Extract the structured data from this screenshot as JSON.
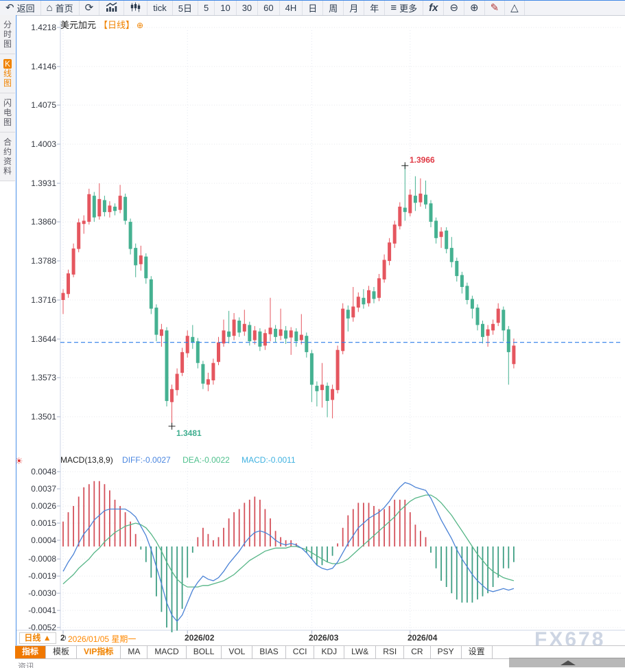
{
  "toolbar": {
    "items": [
      {
        "label": "返回",
        "icon": "back-arrow-icon"
      },
      {
        "label": "首页",
        "icon": "home-icon"
      },
      {
        "label": "",
        "icon": "refresh-icon"
      },
      {
        "label": "",
        "icon": "bar-chart-icon"
      },
      {
        "label": "",
        "icon": "candlestick-icon"
      },
      {
        "label": "tick"
      },
      {
        "label": "5日"
      },
      {
        "label": "5"
      },
      {
        "label": "10"
      },
      {
        "label": "30"
      },
      {
        "label": "60"
      },
      {
        "label": "4H"
      },
      {
        "label": "日"
      },
      {
        "label": "周"
      },
      {
        "label": "月"
      },
      {
        "label": "年"
      },
      {
        "label": "更多",
        "icon": "menu-icon"
      },
      {
        "label": "",
        "icon": "fx-icon"
      },
      {
        "label": "",
        "icon": "zoom-out-icon"
      },
      {
        "label": "",
        "icon": "zoom-in-icon"
      },
      {
        "label": "",
        "icon": "pencil-icon"
      },
      {
        "label": "",
        "icon": "triangle-icon"
      }
    ]
  },
  "sidebar": {
    "items": [
      {
        "label": "分时图",
        "active": false
      },
      {
        "label": "K线图",
        "active": true
      },
      {
        "label": "闪电图",
        "active": false
      },
      {
        "label": "合约资料",
        "active": false
      }
    ]
  },
  "chart": {
    "title": "美元加元",
    "period_tag": "【日线】",
    "settings_icon": "⊕",
    "high_label": "1.3966",
    "low_label": "1.3481",
    "colors": {
      "up": "#e5565f",
      "down": "#45b191",
      "hist_pos": "#d4505a",
      "hist_neg": "#3f9f84",
      "diff_line": "#4a82d6",
      "dea_line": "#55b586",
      "dashed_line": "#2b7de9",
      "accent_orange": "#f08300"
    }
  },
  "macd_header": {
    "name": "MACD(13,8,9)",
    "diff": "DIFF:-0.0027",
    "dea": "DEA:-0.0022",
    "macd": "MACD:-0.0011"
  },
  "bottom": {
    "period_button": "日线 ▲",
    "date_label": "2026/01/05 星期一",
    "tabs": [
      {
        "label": "指标",
        "state": "active"
      },
      {
        "label": "模板",
        "state": ""
      },
      {
        "label": "VIP指标",
        "state": "vip"
      },
      {
        "label": "MA",
        "state": ""
      },
      {
        "label": "MACD",
        "state": ""
      },
      {
        "label": "BOLL",
        "state": ""
      },
      {
        "label": "VOL",
        "state": ""
      },
      {
        "label": "BIAS",
        "state": ""
      },
      {
        "label": "CCI",
        "state": ""
      },
      {
        "label": "KDJ",
        "state": ""
      },
      {
        "label": "LW&",
        "state": ""
      },
      {
        "label": "RSI",
        "state": ""
      },
      {
        "label": "CR",
        "state": ""
      },
      {
        "label": "PSY",
        "state": ""
      },
      {
        "label": "设置",
        "state": ""
      }
    ],
    "partial_text": "资讯"
  },
  "watermark": "FX678",
  "chart_data": {
    "type": "candlestick",
    "title": "美元加元 日线",
    "x_labels": [
      "2026/01",
      "2026/02",
      "2026/03",
      "2026/04"
    ],
    "month_start_indices": [
      0,
      24,
      48,
      67
    ],
    "y_axis": {
      "ticks": [
        "1.4218",
        "1.4146",
        "1.4075",
        "1.4003",
        "1.3931",
        "1.3860",
        "1.3788",
        "1.3716",
        "1.3644",
        "1.3573",
        "1.3501"
      ],
      "high_annotation": 1.3966,
      "low_annotation": 1.3481,
      "last_price_line": 1.3638
    },
    "candles": [
      [
        1.3716,
        1.3729,
        1.369,
        1.3736
      ],
      [
        1.3727,
        1.3765,
        1.372,
        1.3772
      ],
      [
        1.3763,
        1.3811,
        1.3758,
        1.382
      ],
      [
        1.381,
        1.3859,
        1.3804,
        1.3866
      ],
      [
        1.3856,
        1.3862,
        1.3838,
        1.3872
      ],
      [
        1.386,
        1.3911,
        1.3855,
        1.3921
      ],
      [
        1.3908,
        1.3868,
        1.386,
        1.3915
      ],
      [
        1.387,
        1.3902,
        1.3864,
        1.3931
      ],
      [
        1.39,
        1.3878,
        1.387,
        1.3908
      ],
      [
        1.3878,
        1.389,
        1.3868,
        1.3898
      ],
      [
        1.3888,
        1.388,
        1.3872,
        1.3894
      ],
      [
        1.3882,
        1.3908,
        1.3876,
        1.3928
      ],
      [
        1.3906,
        1.3862,
        1.3855,
        1.3912
      ],
      [
        1.386,
        1.381,
        1.38,
        1.3866
      ],
      [
        1.3812,
        1.378,
        1.3758,
        1.382
      ],
      [
        1.3782,
        1.3798,
        1.377,
        1.3816
      ],
      [
        1.3796,
        1.3756,
        1.3746,
        1.3802
      ],
      [
        1.3754,
        1.37,
        1.369,
        1.376
      ],
      [
        1.3702,
        1.3652,
        1.364,
        1.3708
      ],
      [
        1.365,
        1.3662,
        1.363,
        1.3672
      ],
      [
        1.366,
        1.353,
        1.352,
        1.3666
      ],
      [
        1.3528,
        1.3552,
        1.3481,
        1.356
      ],
      [
        1.355,
        1.358,
        1.354,
        1.359
      ],
      [
        1.3582,
        1.362,
        1.3576,
        1.3628
      ],
      [
        1.3618,
        1.365,
        1.361,
        1.366
      ],
      [
        1.3648,
        1.3638,
        1.3626,
        1.367
      ],
      [
        1.364,
        1.36,
        1.359,
        1.3646
      ],
      [
        1.3598,
        1.3562,
        1.3552,
        1.3604
      ],
      [
        1.356,
        1.357,
        1.3548,
        1.3582
      ],
      [
        1.3568,
        1.36,
        1.356,
        1.3608
      ],
      [
        1.3602,
        1.3638,
        1.3596,
        1.3648
      ],
      [
        1.3636,
        1.366,
        1.363,
        1.368
      ],
      [
        1.3658,
        1.3648,
        1.3636,
        1.3696
      ],
      [
        1.365,
        1.368,
        1.3642,
        1.3692
      ],
      [
        1.3678,
        1.3656,
        1.3648,
        1.3684
      ],
      [
        1.3658,
        1.3672,
        1.365,
        1.3698
      ],
      [
        1.367,
        1.364,
        1.3632,
        1.3676
      ],
      [
        1.3642,
        1.366,
        1.3634,
        1.3668
      ],
      [
        1.3658,
        1.363,
        1.3622,
        1.3664
      ],
      [
        1.3632,
        1.3655,
        1.3624,
        1.3662
      ],
      [
        1.3653,
        1.3665,
        1.364,
        1.372
      ],
      [
        1.3663,
        1.3648,
        1.3638,
        1.367
      ],
      [
        1.365,
        1.3662,
        1.3642,
        1.37
      ],
      [
        1.366,
        1.3645,
        1.3635,
        1.3668
      ],
      [
        1.3647,
        1.366,
        1.3615,
        1.3666
      ],
      [
        1.3658,
        1.364,
        1.363,
        1.3664
      ],
      [
        1.3642,
        1.3652,
        1.3634,
        1.369
      ],
      [
        1.365,
        1.362,
        1.361,
        1.3656
      ],
      [
        1.3618,
        1.356,
        1.3528,
        1.3624
      ],
      [
        1.3558,
        1.3548,
        1.352,
        1.3566
      ],
      [
        1.355,
        1.356,
        1.3518,
        1.36
      ],
      [
        1.3558,
        1.353,
        1.35,
        1.3564
      ],
      [
        1.3532,
        1.3552,
        1.3498,
        1.356
      ],
      [
        1.355,
        1.3624,
        1.3544,
        1.3632
      ],
      [
        1.3622,
        1.37,
        1.3616,
        1.371
      ],
      [
        1.3698,
        1.3682,
        1.3658,
        1.3706
      ],
      [
        1.3684,
        1.3704,
        1.3676,
        1.374
      ],
      [
        1.3702,
        1.3722,
        1.3694,
        1.373
      ],
      [
        1.372,
        1.3708,
        1.37,
        1.3736
      ],
      [
        1.371,
        1.3734,
        1.3704,
        1.3742
      ],
      [
        1.3732,
        1.3718,
        1.371,
        1.374
      ],
      [
        1.372,
        1.3756,
        1.3714,
        1.3764
      ],
      [
        1.3754,
        1.379,
        1.3748,
        1.38
      ],
      [
        1.3788,
        1.3822,
        1.378,
        1.383
      ],
      [
        1.382,
        1.3855,
        1.3812,
        1.3862
      ],
      [
        1.3852,
        1.3888,
        1.3846,
        1.3896
      ],
      [
        1.3886,
        1.3878,
        1.3862,
        1.3966
      ],
      [
        1.3876,
        1.391,
        1.387,
        1.392
      ],
      [
        1.3908,
        1.3895,
        1.388,
        1.3944
      ],
      [
        1.3896,
        1.3912,
        1.3888,
        1.394
      ],
      [
        1.391,
        1.3892,
        1.3884,
        1.3936
      ],
      [
        1.3894,
        1.386,
        1.385,
        1.39
      ],
      [
        1.3862,
        1.383,
        1.382,
        1.3868
      ],
      [
        1.3832,
        1.3842,
        1.3812,
        1.385
      ],
      [
        1.3844,
        1.381,
        1.3802,
        1.385
      ],
      [
        1.3812,
        1.3786,
        1.3776,
        1.3832
      ],
      [
        1.3788,
        1.376,
        1.375,
        1.3794
      ],
      [
        1.3762,
        1.374,
        1.3728,
        1.3768
      ],
      [
        1.3742,
        1.3716,
        1.3708,
        1.3748
      ],
      [
        1.3718,
        1.37,
        1.3682,
        1.3724
      ],
      [
        1.3702,
        1.367,
        1.366,
        1.3708
      ],
      [
        1.3672,
        1.3648,
        1.3636,
        1.3678
      ],
      [
        1.365,
        1.3662,
        1.363,
        1.367
      ],
      [
        1.366,
        1.3672,
        1.3652,
        1.368
      ],
      [
        1.3674,
        1.37,
        1.3668,
        1.371
      ],
      [
        1.3698,
        1.366,
        1.364,
        1.3704
      ],
      [
        1.3662,
        1.362,
        1.356,
        1.3668
      ],
      [
        1.3598,
        1.3632,
        1.359,
        1.3645
      ]
    ],
    "macd": {
      "params": "(13,8,9)",
      "y_ticks": [
        "0.0048",
        "0.0037",
        "0.0026",
        "0.0015",
        "0.0004",
        "-0.0008",
        "-0.0019",
        "-0.0030",
        "-0.0041",
        "-0.0052"
      ],
      "histogram_multiplier": 2,
      "diff": [
        -0.0016,
        -0.001,
        -0.0005,
        0.0002,
        0.0008,
        0.0012,
        0.0017,
        0.002,
        0.0023,
        0.0024,
        0.0024,
        0.0024,
        0.0024,
        0.0022,
        0.0019,
        0.0013,
        0.0007,
        -0.0002,
        -0.0013,
        -0.0024,
        -0.0036,
        -0.0044,
        -0.0048,
        -0.0044,
        -0.0036,
        -0.0028,
        -0.0023,
        -0.0019,
        -0.0021,
        -0.0022,
        -0.002,
        -0.0016,
        -0.0011,
        -0.0007,
        -0.0003,
        0.0002,
        0.0006,
        0.0009,
        0.001,
        0.0009,
        0.0007,
        0.0004,
        0.0002,
        0.0001,
        0.0002,
        0.0001,
        -0.0001,
        -0.0004,
        -0.0008,
        -0.0012,
        -0.0014,
        -0.0015,
        -0.0014,
        -0.001,
        -0.0004,
        0.0002,
        0.0007,
        0.0012,
        0.0015,
        0.0018,
        0.002,
        0.0022,
        0.0025,
        0.0029,
        0.0034,
        0.0038,
        0.0041,
        0.004,
        0.0038,
        0.0037,
        0.0036,
        0.0031,
        0.0024,
        0.0017,
        0.0011,
        0.0005,
        -0.0002,
        -0.0008,
        -0.0013,
        -0.0018,
        -0.0022,
        -0.0025,
        -0.0028,
        -0.0029,
        -0.0028,
        -0.0027,
        -0.0028,
        -0.0027
      ],
      "dea": [
        -0.0024,
        -0.0021,
        -0.0018,
        -0.0014,
        -0.0011,
        -0.0008,
        -0.0004,
        -0.0001,
        0.0003,
        0.0006,
        0.0009,
        0.0011,
        0.0013,
        0.0014,
        0.0015,
        0.0014,
        0.0012,
        0.0008,
        0.0003,
        -0.0003,
        -0.001,
        -0.0016,
        -0.0021,
        -0.0024,
        -0.0026,
        -0.0026,
        -0.0026,
        -0.0025,
        -0.0025,
        -0.0024,
        -0.0023,
        -0.0022,
        -0.002,
        -0.0018,
        -0.0015,
        -0.0012,
        -0.0009,
        -0.0007,
        -0.0005,
        -0.0003,
        -0.0002,
        -0.0001,
        -0.0001,
        -0.0001,
        0.0,
        0.0,
        -0.0001,
        -0.0002,
        -0.0004,
        -0.0006,
        -0.0008,
        -0.001,
        -0.0011,
        -0.0011,
        -0.001,
        -0.0008,
        -0.0005,
        -0.0002,
        0.0001,
        0.0004,
        0.0007,
        0.001,
        0.0013,
        0.0016,
        0.0019,
        0.0023,
        0.0026,
        0.0029,
        0.0031,
        0.0032,
        0.0033,
        0.0033,
        0.0031,
        0.0028,
        0.0024,
        0.002,
        0.0015,
        0.001,
        0.0005,
        0.0,
        -0.0005,
        -0.0009,
        -0.0013,
        -0.0016,
        -0.0018,
        -0.002,
        -0.0021,
        -0.0022
      ]
    }
  }
}
